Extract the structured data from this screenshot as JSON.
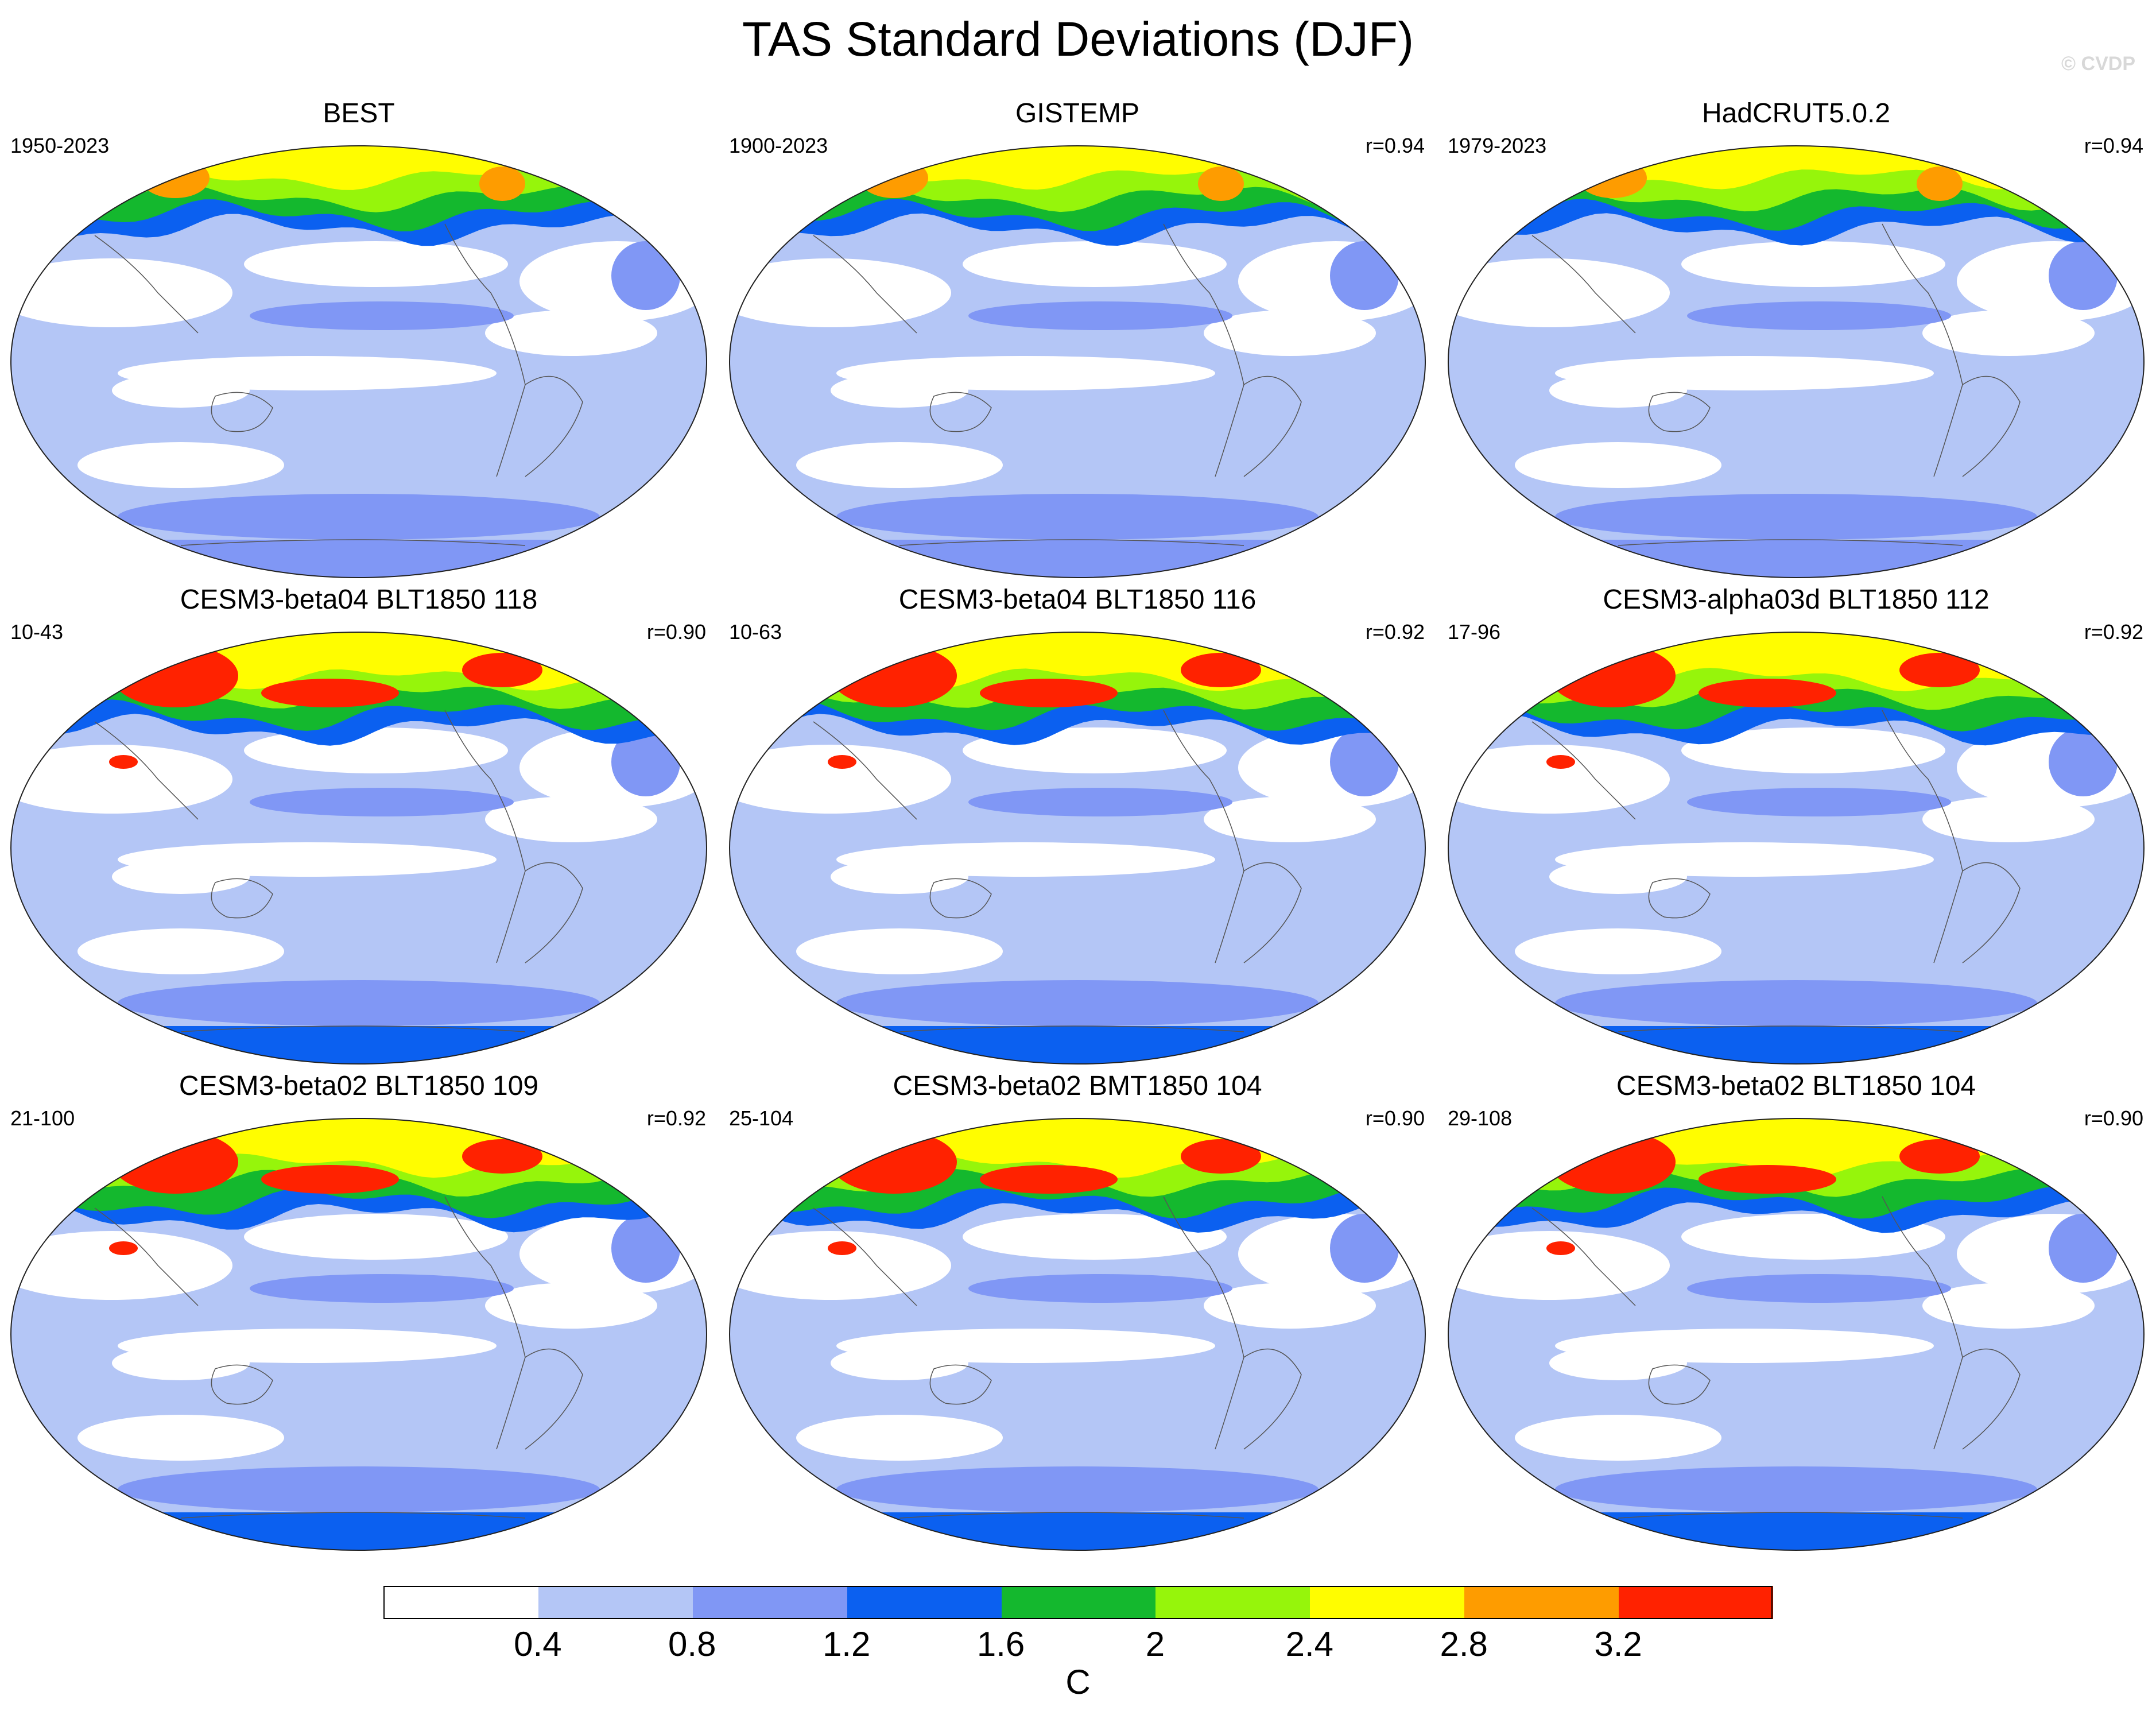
{
  "title": "TAS Standard Deviations (DJF)",
  "watermark": "© CVDP",
  "panels": [
    {
      "title": "BEST",
      "years": "1950-2023",
      "corr": "",
      "level": 1.4
    },
    {
      "title": "GISTEMP",
      "years": "1900-2023",
      "corr": "r=0.94",
      "level": 1.5
    },
    {
      "title": "HadCRUT5.0.2",
      "years": "1979-2023",
      "corr": "r=0.94",
      "level": 1.3
    },
    {
      "title": "CESM3-beta04 BLT1850 118",
      "years": "10-43",
      "corr": "r=0.90",
      "level": 2.0
    },
    {
      "title": "CESM3-beta04 BLT1850 116",
      "years": "10-63",
      "corr": "r=0.92",
      "level": 2.0
    },
    {
      "title": "CESM3-alpha03d BLT1850 112",
      "years": "17-96",
      "corr": "r=0.92",
      "level": 2.0
    },
    {
      "title": "CESM3-beta02 BLT1850 109",
      "years": "21-100",
      "corr": "r=0.92",
      "level": 2.0
    },
    {
      "title": "CESM3-beta02 BMT1850 104",
      "years": "25-104",
      "corr": "r=0.90",
      "level": 2.0
    },
    {
      "title": "CESM3-beta02 BLT1850 104",
      "years": "29-108",
      "corr": "r=0.90",
      "level": 2.0
    }
  ],
  "colorbar": {
    "unit": "C",
    "ticks": [
      "0.4",
      "0.8",
      "1.2",
      "1.6",
      "2",
      "2.4",
      "2.8",
      "3.2"
    ],
    "colors": [
      "#ffffff",
      "#b4c6f6",
      "#8097f5",
      "#0b60f0",
      "#14b82e",
      "#96f50b",
      "#fffd00",
      "#fe9c00",
      "#ff2200"
    ]
  }
}
